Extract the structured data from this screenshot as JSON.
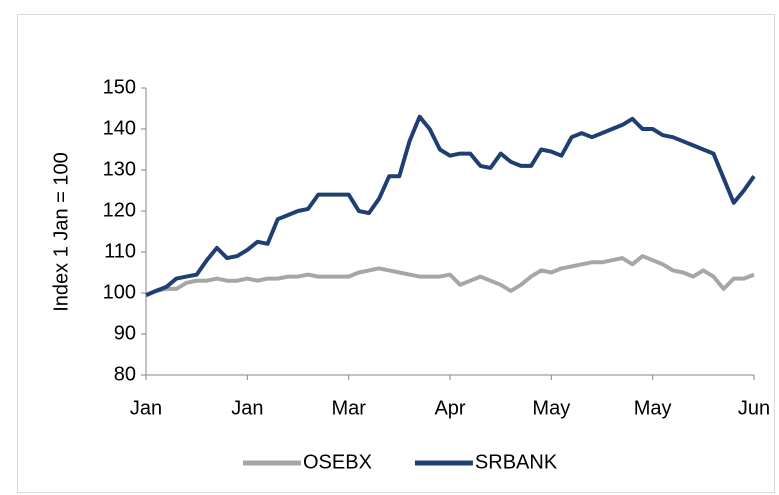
{
  "chart_data": {
    "type": "line",
    "y_label": "Index 1 Jan = 100",
    "x_tick_labels": [
      "Jan",
      "Jan",
      "Mar",
      "Apr",
      "May",
      "May",
      "Jun"
    ],
    "ylim": [
      80,
      150
    ],
    "yticks": [
      80,
      90,
      100,
      110,
      120,
      130,
      140,
      150
    ],
    "legend": "bottom",
    "series": [
      {
        "name": "OSEBX",
        "color": "#a6a6a6",
        "values": [
          99.5,
          100.5,
          101,
          101,
          102.5,
          103,
          103,
          103.5,
          103,
          103,
          103.5,
          103,
          103.5,
          103.5,
          104,
          104,
          104.5,
          104,
          104,
          104,
          104,
          105,
          105.5,
          106,
          105.5,
          105,
          104.5,
          104,
          104,
          104,
          104.5,
          102,
          103,
          104,
          103,
          102,
          100.5,
          102,
          104,
          105.5,
          105,
          106,
          106.5,
          107,
          107.5,
          107.5,
          108,
          108.5,
          107,
          109,
          108,
          107,
          105.5,
          105,
          104,
          105.5,
          104,
          101,
          103.5,
          103.5,
          104.5
        ]
      },
      {
        "name": "SRBANK",
        "color": "#1f3f73",
        "values": [
          99.5,
          100.5,
          101.5,
          103.5,
          104,
          104.5,
          108,
          111,
          108.5,
          109,
          110.5,
          112.5,
          112,
          118,
          119,
          120,
          120.5,
          124,
          124,
          124,
          124,
          120,
          119.5,
          123,
          128.5,
          128.5,
          137,
          143,
          140,
          135,
          133.5,
          134,
          134,
          131,
          130.5,
          134,
          132,
          131,
          131,
          135,
          134.5,
          133.5,
          138,
          139,
          138,
          139,
          140,
          141,
          142.5,
          140,
          140,
          138.5,
          138,
          137,
          136,
          135,
          134,
          128,
          122,
          125,
          128.5
        ]
      }
    ]
  }
}
